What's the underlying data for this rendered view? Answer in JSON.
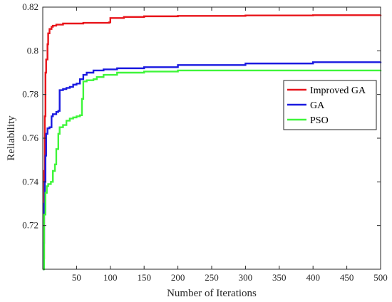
{
  "chart_data": {
    "type": "line",
    "title": "",
    "xlabel": "Number of Iterations",
    "ylabel": "Reliability",
    "xlim": [
      0,
      500
    ],
    "ylim": [
      0.7,
      0.82
    ],
    "xticks": [
      50,
      100,
      150,
      200,
      250,
      300,
      350,
      400,
      450,
      500
    ],
    "yticks": [
      0.72,
      0.74,
      0.76,
      0.78,
      0.8,
      0.82
    ],
    "ytick_labels": [
      "0.72",
      "0.74",
      "0.76",
      "0.78",
      "0.8",
      "0.82"
    ],
    "grid": false,
    "legend_position": "right",
    "series": [
      {
        "name": "Improved GA",
        "color": "#e8141a",
        "points": [
          [
            0,
            0.7
          ],
          [
            1,
            0.705
          ],
          [
            2,
            0.745
          ],
          [
            3,
            0.77
          ],
          [
            4,
            0.79
          ],
          [
            5,
            0.796
          ],
          [
            7,
            0.803
          ],
          [
            8,
            0.808
          ],
          [
            10,
            0.81
          ],
          [
            13,
            0.811
          ],
          [
            15,
            0.8115
          ],
          [
            20,
            0.812
          ],
          [
            30,
            0.8125
          ],
          [
            60,
            0.8128
          ],
          [
            98,
            0.813
          ],
          [
            100,
            0.815
          ],
          [
            120,
            0.8155
          ],
          [
            150,
            0.8158
          ],
          [
            200,
            0.816
          ],
          [
            300,
            0.8162
          ],
          [
            400,
            0.8163
          ],
          [
            500,
            0.8165
          ]
        ]
      },
      {
        "name": "GA",
        "color": "#1a1ae0",
        "points": [
          [
            0,
            0.7
          ],
          [
            1,
            0.712
          ],
          [
            2,
            0.73
          ],
          [
            3,
            0.74
          ],
          [
            4,
            0.752
          ],
          [
            5,
            0.762
          ],
          [
            7,
            0.7645
          ],
          [
            10,
            0.765
          ],
          [
            13,
            0.77
          ],
          [
            15,
            0.771
          ],
          [
            20,
            0.772
          ],
          [
            23,
            0.7725
          ],
          [
            25,
            0.782
          ],
          [
            30,
            0.7825
          ],
          [
            35,
            0.783
          ],
          [
            40,
            0.7835
          ],
          [
            45,
            0.7845
          ],
          [
            50,
            0.785
          ],
          [
            55,
            0.787
          ],
          [
            60,
            0.789
          ],
          [
            65,
            0.79
          ],
          [
            75,
            0.791
          ],
          [
            90,
            0.7915
          ],
          [
            110,
            0.792
          ],
          [
            150,
            0.7925
          ],
          [
            200,
            0.7935
          ],
          [
            300,
            0.7942
          ],
          [
            400,
            0.7948
          ],
          [
            500,
            0.795
          ]
        ]
      },
      {
        "name": "PSO",
        "color": "#3ff53a",
        "points": [
          [
            0,
            0.7
          ],
          [
            2,
            0.725
          ],
          [
            4,
            0.735
          ],
          [
            6,
            0.738
          ],
          [
            8,
            0.739
          ],
          [
            12,
            0.74
          ],
          [
            15,
            0.745
          ],
          [
            18,
            0.748
          ],
          [
            20,
            0.755
          ],
          [
            23,
            0.762
          ],
          [
            25,
            0.765
          ],
          [
            30,
            0.766
          ],
          [
            35,
            0.768
          ],
          [
            40,
            0.769
          ],
          [
            45,
            0.7695
          ],
          [
            50,
            0.77
          ],
          [
            55,
            0.7705
          ],
          [
            58,
            0.778
          ],
          [
            60,
            0.786
          ],
          [
            65,
            0.7865
          ],
          [
            75,
            0.787
          ],
          [
            80,
            0.788
          ],
          [
            90,
            0.789
          ],
          [
            110,
            0.79
          ],
          [
            150,
            0.7905
          ],
          [
            200,
            0.791
          ],
          [
            500,
            0.7912
          ]
        ]
      }
    ]
  }
}
